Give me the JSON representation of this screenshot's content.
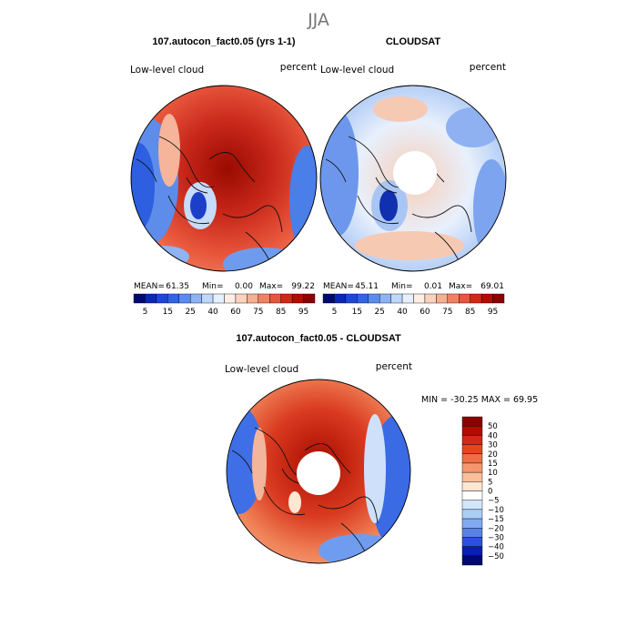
{
  "figure_title": "JJA",
  "panels": [
    {
      "title": "107.autocon_fact0.05 (yrs 1-1)",
      "variable": "Low-level cloud",
      "units": "percent",
      "stats": {
        "mean_label": "MEAN=",
        "mean": "61.35",
        "min_label": "Min=",
        "min": "0.00",
        "max_label": "Max=",
        "max": "99.22"
      },
      "pole_hole": false
    },
    {
      "title": "CLOUDSAT",
      "variable": "Low-level cloud",
      "units": "percent",
      "stats": {
        "mean_label": "MEAN=",
        "mean": "45.11",
        "min_label": "Min=",
        "min": "0.01",
        "max_label": "Max=",
        "max": "69.01"
      },
      "pole_hole": true
    },
    {
      "title": "107.autocon_fact0.05 - CLOUDSAT",
      "variable": "Low-level cloud",
      "units": "percent",
      "stats_text": "MIN = -30.25 MAX = 69.95",
      "pole_hole": true
    }
  ],
  "colorbar_top": {
    "labels": [
      "5",
      "15",
      "25",
      "40",
      "60",
      "75",
      "85",
      "95"
    ],
    "colors": [
      "#000a6e",
      "#0a28b4",
      "#1e46dc",
      "#3264e6",
      "#5a8cf0",
      "#8cb4f5",
      "#bed7fa",
      "#e6f0ff",
      "#ffeee6",
      "#fad2be",
      "#f5af91",
      "#f08264",
      "#e6553c",
      "#d22814",
      "#b40a00",
      "#8c0000"
    ]
  },
  "colorbar_diff": {
    "labels": [
      "50",
      "40",
      "30",
      "20",
      "15",
      "10",
      "5",
      "0",
      "−5",
      "−10",
      "−15",
      "−20",
      "−30",
      "−40",
      "−50"
    ],
    "colors": [
      "#8c0000",
      "#b40a00",
      "#d22814",
      "#e6461e",
      "#f06e46",
      "#f5966e",
      "#fabe9b",
      "#fde6d2",
      "#ffffff",
      "#d2e6fa",
      "#aacdf5",
      "#82aaf0",
      "#5a82e6",
      "#2d50dc",
      "#0a1eb4",
      "#000a6e"
    ]
  }
}
